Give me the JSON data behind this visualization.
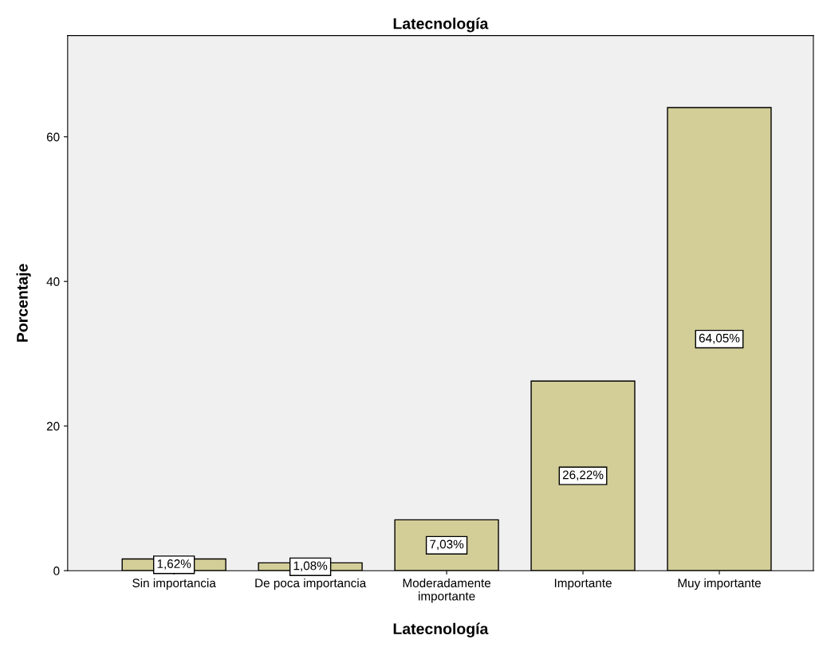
{
  "chart_data": {
    "type": "bar",
    "title": "Latecnología",
    "xlabel": "Latecnología",
    "ylabel": "Porcentaje",
    "categories": [
      "Sin importancia",
      "De poca importancia",
      "Moderadamente\nimportante",
      "Importante",
      "Muy importante"
    ],
    "values": [
      1.62,
      1.08,
      7.03,
      26.22,
      64.05
    ],
    "value_labels": [
      "1,62%",
      "1,08%",
      "7,03%",
      "26,22%",
      "64,05%"
    ],
    "color": "#d3ce98",
    "ylim": [
      0,
      74
    ],
    "yticks": [
      0,
      20,
      40,
      60
    ],
    "grid": false,
    "legend": false
  }
}
